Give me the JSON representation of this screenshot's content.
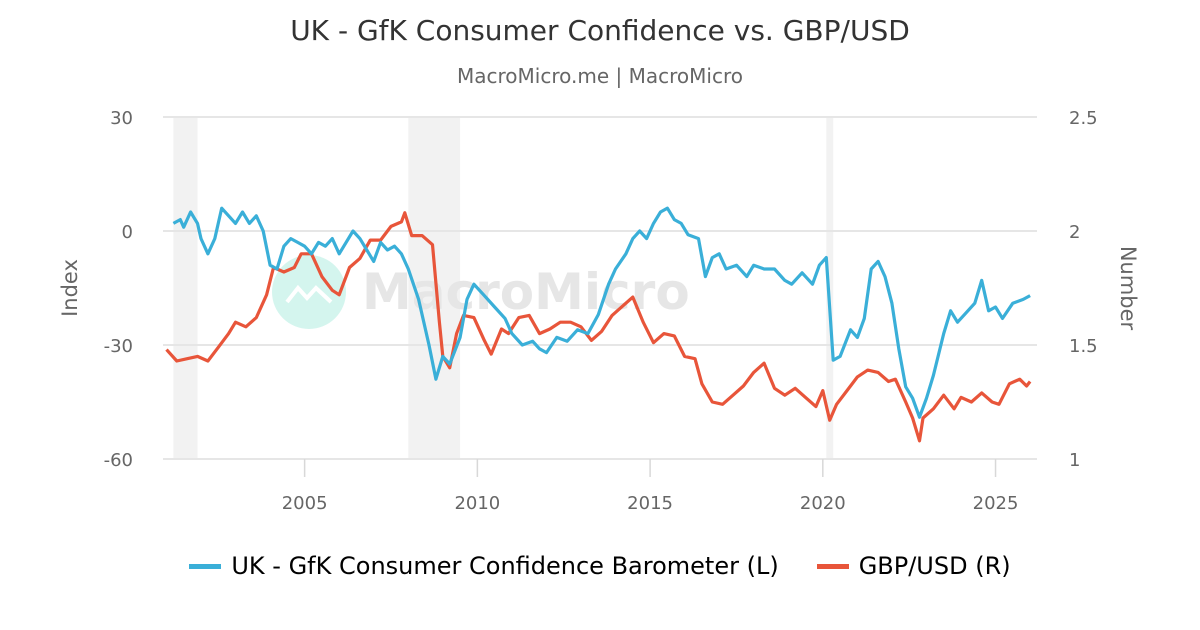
{
  "chart_data": {
    "type": "line",
    "title": "UK - GfK Consumer Confidence vs. GBP/USD",
    "subtitle": "MacroMicro.me | MacroMicro",
    "watermark": "MacroMicro",
    "xlabel": "",
    "x_ticks": [
      "2005",
      "2010",
      "2015",
      "2020",
      "2025"
    ],
    "x_tick_values": [
      2005,
      2010,
      2015,
      2020,
      2025
    ],
    "xlim": [
      2000.9,
      2026.2
    ],
    "y_left": {
      "label": "Index",
      "ticks": [
        "30",
        "0",
        "-30",
        "-60"
      ],
      "tick_values": [
        30,
        0,
        -30,
        -60
      ],
      "lim": [
        -60,
        30
      ]
    },
    "y_right": {
      "label": "Number",
      "ticks": [
        "2.5",
        "2",
        "1.5",
        "1"
      ],
      "tick_values": [
        2.5,
        2,
        1.5,
        1
      ],
      "lim": [
        1,
        2.5
      ]
    },
    "grid": true,
    "legend_position": "bottom",
    "recession_bands": [
      [
        2001.2,
        2001.9
      ],
      [
        2008.0,
        2009.5
      ],
      [
        2020.1,
        2020.3
      ]
    ],
    "series": [
      {
        "name": "UK - GfK Consumer Confidence Barometer (L)",
        "axis": "left",
        "color": "#3AAFD8",
        "points": [
          [
            2001.2,
            2
          ],
          [
            2001.4,
            3
          ],
          [
            2001.5,
            1
          ],
          [
            2001.7,
            5
          ],
          [
            2001.9,
            2
          ],
          [
            2002.0,
            -2
          ],
          [
            2002.2,
            -6
          ],
          [
            2002.4,
            -2
          ],
          [
            2002.6,
            6
          ],
          [
            2002.8,
            4
          ],
          [
            2003.0,
            2
          ],
          [
            2003.2,
            5
          ],
          [
            2003.4,
            2
          ],
          [
            2003.6,
            4
          ],
          [
            2003.8,
            0
          ],
          [
            2004.0,
            -9
          ],
          [
            2004.2,
            -10
          ],
          [
            2004.4,
            -4
          ],
          [
            2004.6,
            -2
          ],
          [
            2004.8,
            -3
          ],
          [
            2005.0,
            -4
          ],
          [
            2005.2,
            -6
          ],
          [
            2005.4,
            -3
          ],
          [
            2005.6,
            -4
          ],
          [
            2005.8,
            -2
          ],
          [
            2006.0,
            -6
          ],
          [
            2006.2,
            -3
          ],
          [
            2006.4,
            0
          ],
          [
            2006.6,
            -2
          ],
          [
            2006.8,
            -5
          ],
          [
            2007.0,
            -8
          ],
          [
            2007.2,
            -3
          ],
          [
            2007.4,
            -5
          ],
          [
            2007.6,
            -4
          ],
          [
            2007.8,
            -6
          ],
          [
            2008.0,
            -10
          ],
          [
            2008.3,
            -18
          ],
          [
            2008.6,
            -30
          ],
          [
            2008.8,
            -39
          ],
          [
            2009.0,
            -33
          ],
          [
            2009.2,
            -35
          ],
          [
            2009.5,
            -28
          ],
          [
            2009.7,
            -18
          ],
          [
            2009.9,
            -14
          ],
          [
            2010.2,
            -17
          ],
          [
            2010.5,
            -20
          ],
          [
            2010.8,
            -23
          ],
          [
            2011.0,
            -27
          ],
          [
            2011.3,
            -30
          ],
          [
            2011.6,
            -29
          ],
          [
            2011.8,
            -31
          ],
          [
            2012.0,
            -32
          ],
          [
            2012.3,
            -28
          ],
          [
            2012.6,
            -29
          ],
          [
            2012.9,
            -26
          ],
          [
            2013.2,
            -27
          ],
          [
            2013.5,
            -22
          ],
          [
            2013.8,
            -14
          ],
          [
            2014.0,
            -10
          ],
          [
            2014.3,
            -6
          ],
          [
            2014.5,
            -2
          ],
          [
            2014.7,
            0
          ],
          [
            2014.9,
            -2
          ],
          [
            2015.1,
            2
          ],
          [
            2015.3,
            5
          ],
          [
            2015.5,
            6
          ],
          [
            2015.7,
            3
          ],
          [
            2015.9,
            2
          ],
          [
            2016.1,
            -1
          ],
          [
            2016.4,
            -2
          ],
          [
            2016.6,
            -12
          ],
          [
            2016.8,
            -7
          ],
          [
            2017.0,
            -6
          ],
          [
            2017.2,
            -10
          ],
          [
            2017.5,
            -9
          ],
          [
            2017.8,
            -12
          ],
          [
            2018.0,
            -9
          ],
          [
            2018.3,
            -10
          ],
          [
            2018.6,
            -10
          ],
          [
            2018.9,
            -13
          ],
          [
            2019.1,
            -14
          ],
          [
            2019.4,
            -11
          ],
          [
            2019.7,
            -14
          ],
          [
            2019.9,
            -9
          ],
          [
            2020.1,
            -7
          ],
          [
            2020.3,
            -34
          ],
          [
            2020.5,
            -33
          ],
          [
            2020.8,
            -26
          ],
          [
            2021.0,
            -28
          ],
          [
            2021.2,
            -23
          ],
          [
            2021.4,
            -10
          ],
          [
            2021.6,
            -8
          ],
          [
            2021.8,
            -12
          ],
          [
            2022.0,
            -19
          ],
          [
            2022.2,
            -31
          ],
          [
            2022.4,
            -41
          ],
          [
            2022.6,
            -44
          ],
          [
            2022.8,
            -49
          ],
          [
            2023.0,
            -44
          ],
          [
            2023.2,
            -38
          ],
          [
            2023.5,
            -27
          ],
          [
            2023.7,
            -21
          ],
          [
            2023.9,
            -24
          ],
          [
            2024.1,
            -22
          ],
          [
            2024.4,
            -19
          ],
          [
            2024.6,
            -13
          ],
          [
            2024.8,
            -21
          ],
          [
            2025.0,
            -20
          ],
          [
            2025.2,
            -23
          ],
          [
            2025.5,
            -19
          ],
          [
            2025.8,
            -18
          ],
          [
            2026.0,
            -17
          ]
        ]
      },
      {
        "name": "GBP/USD (R)",
        "axis": "right",
        "color": "#E8553A",
        "points": [
          [
            2001.0,
            1.48
          ],
          [
            2001.3,
            1.43
          ],
          [
            2001.6,
            1.44
          ],
          [
            2001.9,
            1.45
          ],
          [
            2002.2,
            1.43
          ],
          [
            2002.5,
            1.49
          ],
          [
            2002.8,
            1.55
          ],
          [
            2003.0,
            1.6
          ],
          [
            2003.3,
            1.58
          ],
          [
            2003.6,
            1.62
          ],
          [
            2003.9,
            1.72
          ],
          [
            2004.1,
            1.84
          ],
          [
            2004.4,
            1.82
          ],
          [
            2004.7,
            1.84
          ],
          [
            2004.9,
            1.9
          ],
          [
            2005.2,
            1.9
          ],
          [
            2005.5,
            1.8
          ],
          [
            2005.8,
            1.74
          ],
          [
            2006.0,
            1.72
          ],
          [
            2006.3,
            1.84
          ],
          [
            2006.6,
            1.88
          ],
          [
            2006.9,
            1.96
          ],
          [
            2007.2,
            1.96
          ],
          [
            2007.5,
            2.02
          ],
          [
            2007.8,
            2.04
          ],
          [
            2007.9,
            2.08
          ],
          [
            2008.1,
            1.98
          ],
          [
            2008.4,
            1.98
          ],
          [
            2008.7,
            1.94
          ],
          [
            2008.9,
            1.6
          ],
          [
            2009.0,
            1.45
          ],
          [
            2009.2,
            1.4
          ],
          [
            2009.4,
            1.55
          ],
          [
            2009.6,
            1.63
          ],
          [
            2009.9,
            1.62
          ],
          [
            2010.2,
            1.52
          ],
          [
            2010.4,
            1.46
          ],
          [
            2010.7,
            1.57
          ],
          [
            2010.9,
            1.55
          ],
          [
            2011.2,
            1.62
          ],
          [
            2011.5,
            1.63
          ],
          [
            2011.8,
            1.55
          ],
          [
            2012.1,
            1.57
          ],
          [
            2012.4,
            1.6
          ],
          [
            2012.7,
            1.6
          ],
          [
            2013.0,
            1.58
          ],
          [
            2013.3,
            1.52
          ],
          [
            2013.6,
            1.56
          ],
          [
            2013.9,
            1.63
          ],
          [
            2014.2,
            1.67
          ],
          [
            2014.5,
            1.71
          ],
          [
            2014.8,
            1.6
          ],
          [
            2015.1,
            1.51
          ],
          [
            2015.4,
            1.55
          ],
          [
            2015.7,
            1.54
          ],
          [
            2016.0,
            1.45
          ],
          [
            2016.3,
            1.44
          ],
          [
            2016.5,
            1.33
          ],
          [
            2016.8,
            1.25
          ],
          [
            2017.1,
            1.24
          ],
          [
            2017.4,
            1.28
          ],
          [
            2017.7,
            1.32
          ],
          [
            2018.0,
            1.38
          ],
          [
            2018.3,
            1.42
          ],
          [
            2018.6,
            1.31
          ],
          [
            2018.9,
            1.28
          ],
          [
            2019.2,
            1.31
          ],
          [
            2019.5,
            1.27
          ],
          [
            2019.8,
            1.23
          ],
          [
            2020.0,
            1.3
          ],
          [
            2020.2,
            1.17
          ],
          [
            2020.4,
            1.24
          ],
          [
            2020.7,
            1.3
          ],
          [
            2021.0,
            1.36
          ],
          [
            2021.3,
            1.39
          ],
          [
            2021.6,
            1.38
          ],
          [
            2021.9,
            1.34
          ],
          [
            2022.1,
            1.35
          ],
          [
            2022.4,
            1.25
          ],
          [
            2022.6,
            1.18
          ],
          [
            2022.8,
            1.08
          ],
          [
            2022.9,
            1.18
          ],
          [
            2023.2,
            1.22
          ],
          [
            2023.5,
            1.28
          ],
          [
            2023.8,
            1.22
          ],
          [
            2024.0,
            1.27
          ],
          [
            2024.3,
            1.25
          ],
          [
            2024.6,
            1.29
          ],
          [
            2024.9,
            1.25
          ],
          [
            2025.1,
            1.24
          ],
          [
            2025.4,
            1.33
          ],
          [
            2025.7,
            1.35
          ],
          [
            2025.9,
            1.32
          ],
          [
            2026.0,
            1.34
          ]
        ]
      }
    ]
  }
}
